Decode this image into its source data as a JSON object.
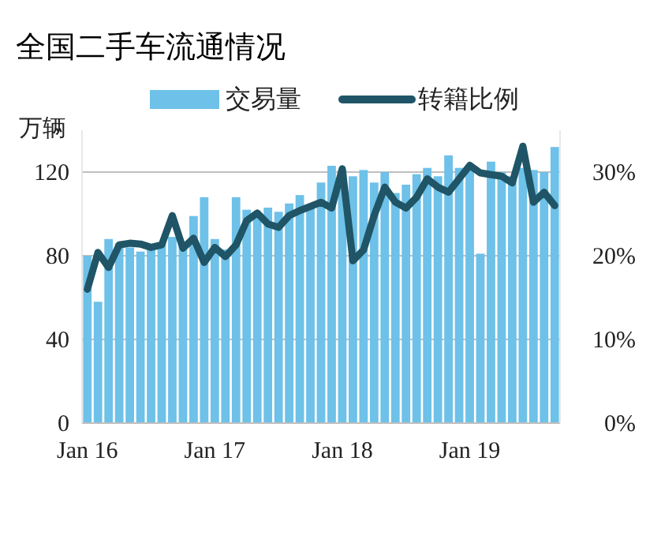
{
  "chart_data": {
    "type": "bar",
    "title": "全国二手车流通情况",
    "ylabel": "万辆",
    "categories": [
      "Jan 16",
      null,
      null,
      null,
      null,
      null,
      null,
      null,
      null,
      null,
      null,
      null,
      "Jan 17",
      null,
      null,
      null,
      null,
      null,
      null,
      null,
      null,
      null,
      null,
      null,
      "Jan 18",
      null,
      null,
      null,
      null,
      null,
      null,
      null,
      null,
      null,
      null,
      null,
      "Jan 19",
      null,
      null,
      null,
      null,
      null,
      null,
      null,
      null
    ],
    "series": [
      {
        "name": "交易量",
        "color": "#6ec1e8",
        "values": [
          80,
          58,
          88,
          86,
          84,
          82,
          83,
          86,
          89,
          85,
          99,
          108,
          88,
          83,
          108,
          102,
          99,
          103,
          101,
          105,
          109,
          104,
          115,
          123,
          121,
          118,
          121,
          115,
          120,
          110,
          114,
          119,
          122,
          118,
          128,
          122,
          122,
          81,
          125,
          120,
          118,
          122,
          121,
          120,
          132
        ]
      },
      {
        "name": "转籍比例",
        "type": "line",
        "axis": "y2",
        "color": "#1f5566",
        "values": [
          16,
          20.4,
          18.6,
          21.3,
          21.5,
          21.4,
          21,
          21.3,
          24.8,
          20.9,
          22.1,
          19.2,
          21,
          19.9,
          21.3,
          24.2,
          25.1,
          23.8,
          23.4,
          24.8,
          25.4,
          25.9,
          26.4,
          25.7,
          30.4,
          19.4,
          20.7,
          24.8,
          28.2,
          26.4,
          25.7,
          27,
          29.2,
          28.2,
          27.6,
          29.2,
          30.8,
          29.9,
          29.7,
          29.5,
          28.7,
          33.1,
          26.4,
          27.6,
          26
        ]
      }
    ],
    "ylim": [
      0,
      140
    ],
    "yticks": [
      0,
      40,
      80,
      120
    ],
    "y2lim": [
      0,
      35
    ],
    "y2ticks": [
      {
        "value": 0,
        "label": "0%"
      },
      {
        "value": 10,
        "label": "10%"
      },
      {
        "value": 20,
        "label": "20%"
      },
      {
        "value": 30,
        "label": "30%"
      }
    ],
    "grid": "y",
    "legend": "top"
  }
}
